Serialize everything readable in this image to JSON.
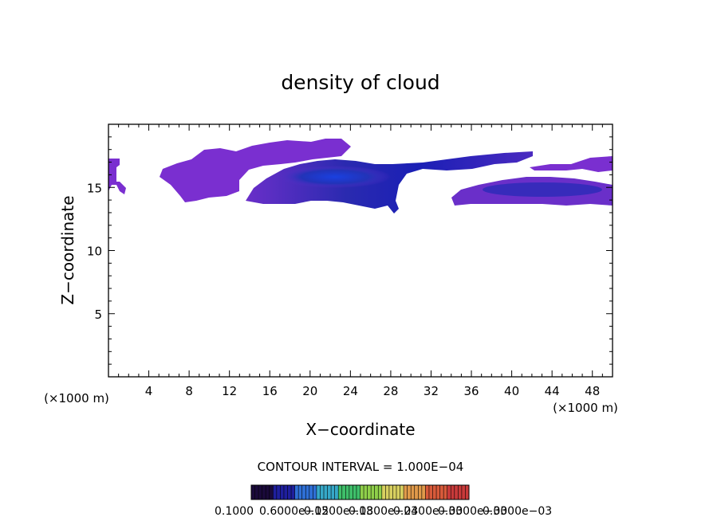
{
  "chart_data": {
    "type": "heatmap",
    "title": "density of cloud",
    "xlabel": "X−coordinate",
    "ylabel": "Z−coordinate",
    "x_unit_left": "(×1000 m)",
    "x_unit_right": "(×1000 m)",
    "xlim": [
      0,
      50
    ],
    "ylim": [
      0,
      20
    ],
    "x_ticks": [
      4,
      8,
      12,
      16,
      20,
      24,
      28,
      32,
      36,
      40,
      44,
      48
    ],
    "y_ticks": [
      5,
      10,
      15
    ],
    "contour_interval_label": "CONTOUR INTERVAL = 1.000E−04",
    "colorbar_labels": [
      "0.1000",
      "0.6000e−05",
      "0.1200e−03",
      "0.1800e−03",
      "0.2400e−03",
      "0.3000e−03",
      "0.3000e−03"
    ],
    "colorbar_colors": [
      "#1a0a3a",
      "#1f1f9e",
      "#2f6fd6",
      "#36a8c8",
      "#3fbf6a",
      "#8fcf4a",
      "#d8d060",
      "#e09a4a",
      "#d85a3a",
      "#c83a3a"
    ],
    "cloud_regions": [
      {
        "name": "upper-left-layer",
        "x": [
          0,
          3
        ],
        "z": [
          14.5,
          17.2
        ],
        "level": 0.15
      },
      {
        "name": "upper-middle-layer",
        "x": [
          5,
          24
        ],
        "z": [
          14,
          18.8
        ],
        "level": 0.2
      },
      {
        "name": "main-core",
        "x": [
          14,
          29
        ],
        "z": [
          13.2,
          17
        ],
        "level": 0.9
      },
      {
        "name": "upper-right-thin",
        "x": [
          25,
          42
        ],
        "z": [
          16,
          17.5
        ],
        "level": 0.2
      },
      {
        "name": "right-core",
        "x": [
          34,
          50
        ],
        "z": [
          13.8,
          16.5
        ],
        "level": 0.75
      },
      {
        "name": "far-right-top",
        "x": [
          43,
          50
        ],
        "z": [
          16.3,
          17.4
        ],
        "level": 0.2
      }
    ]
  }
}
